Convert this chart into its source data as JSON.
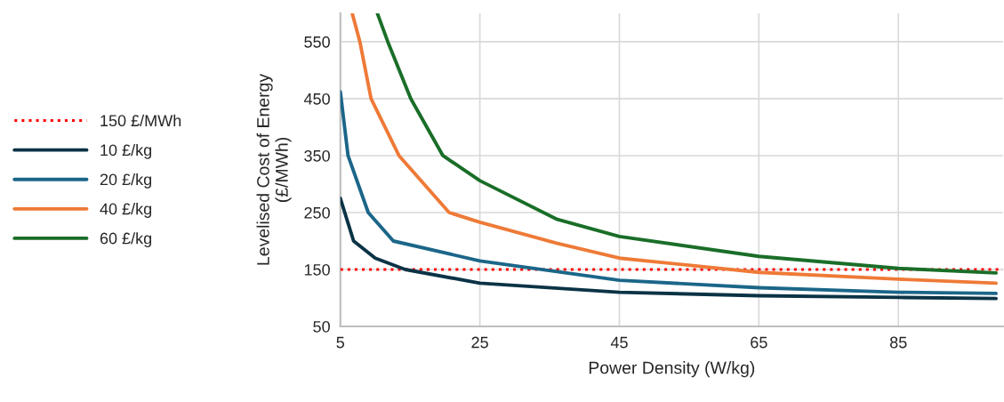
{
  "chart_data": {
    "type": "line",
    "xlabel": "Power Density (W/kg)",
    "ylabel": "Levelised Cost of Energy\n(£/MWh)",
    "xlim": [
      5,
      100
    ],
    "xticks": [
      5,
      25,
      45,
      65,
      85
    ],
    "ylim": [
      50,
      600
    ],
    "yticks": [
      50,
      150,
      250,
      350,
      450,
      550
    ],
    "grid": true,
    "legend": "left",
    "line_style": "solid",
    "marker": "none",
    "ref_lines": [
      {
        "axis": "y",
        "value": 150,
        "label": "150 £/MWh",
        "color": "#ff0000",
        "line_style": "dotted"
      }
    ],
    "series": [
      {
        "name": "10 £/kg",
        "color": "#0b3346",
        "x": [
          5,
          6.9,
          10,
          14.3,
          25,
          45,
          65,
          85,
          99
        ],
        "values": [
          275,
          200,
          170,
          150,
          126,
          110,
          104,
          101,
          99
        ]
      },
      {
        "name": "20 £/kg",
        "color": "#1b6689",
        "x": [
          5,
          6.1,
          9.0,
          12.6,
          25,
          45,
          65,
          85,
          99
        ],
        "values": [
          462,
          350,
          250,
          200,
          165,
          131,
          118,
          110,
          108
        ]
      },
      {
        "name": "40 £/kg",
        "color": "#ee7a37",
        "x": [
          6.7,
          7.8,
          9.4,
          13.4,
          20.6,
          25,
          36.1,
          45,
          65,
          85,
          99
        ],
        "values": [
          600,
          550,
          450,
          350,
          250,
          233,
          196,
          170,
          145,
          133,
          126
        ]
      },
      {
        "name": "60 £/kg",
        "color": "#1a6e28",
        "x": [
          10.3,
          11.8,
          15.1,
          19.7,
          25,
          36.1,
          45,
          65,
          85,
          99
        ],
        "values": [
          600,
          550,
          450,
          350,
          306,
          238,
          208,
          173,
          152,
          144
        ]
      }
    ]
  }
}
